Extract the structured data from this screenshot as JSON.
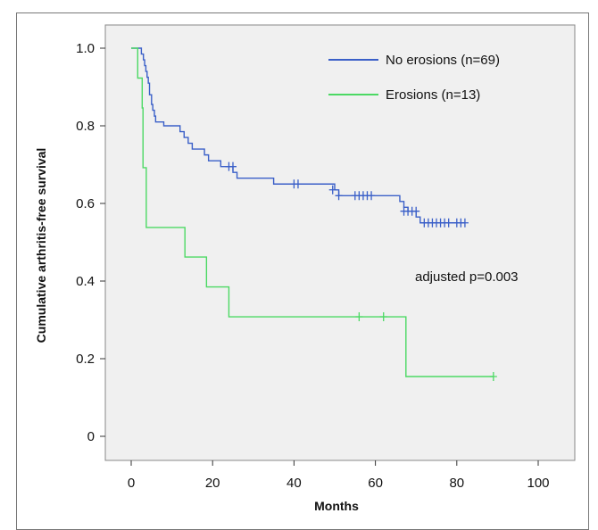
{
  "chart_data": {
    "type": "line",
    "xlabel": "Months",
    "ylabel": "Cumulative arthritis-free survival",
    "xlim": [
      0,
      100
    ],
    "ylim": [
      0,
      1.0
    ],
    "x_ticks": [
      "0",
      "20",
      "40",
      "60",
      "80",
      "100"
    ],
    "y_ticks": [
      "0",
      "0.2",
      "0.4",
      "0.6",
      "0.8",
      "1.0"
    ],
    "grid": false,
    "legend_position": "top-right",
    "annotation": "adjusted p=0.003",
    "colors": {
      "No erosions (n=69)": "#3a5fc8",
      "Erosions (n=13)": "#4cd964",
      "plot_bg": "#f0f0f0"
    },
    "series": [
      {
        "name": "No erosions (n=69)",
        "step": true,
        "points": [
          [
            0,
            1.0
          ],
          [
            2,
            1.0
          ],
          [
            2.5,
            0.985
          ],
          [
            3,
            0.97
          ],
          [
            3.3,
            0.955
          ],
          [
            3.6,
            0.94
          ],
          [
            3.9,
            0.925
          ],
          [
            4.2,
            0.91
          ],
          [
            4.5,
            0.88
          ],
          [
            5,
            0.855
          ],
          [
            5.3,
            0.84
          ],
          [
            5.7,
            0.825
          ],
          [
            6,
            0.81
          ],
          [
            8,
            0.8
          ],
          [
            12,
            0.785
          ],
          [
            13,
            0.77
          ],
          [
            14,
            0.755
          ],
          [
            15,
            0.74
          ],
          [
            18,
            0.725
          ],
          [
            19,
            0.71
          ],
          [
            22,
            0.695
          ],
          [
            25,
            0.68
          ],
          [
            26,
            0.665
          ],
          [
            35,
            0.65
          ],
          [
            41,
            0.65
          ],
          [
            50,
            0.635
          ],
          [
            51,
            0.62
          ],
          [
            56,
            0.62
          ],
          [
            62,
            0.62
          ],
          [
            66,
            0.605
          ],
          [
            67,
            0.59
          ],
          [
            68,
            0.58
          ],
          [
            70,
            0.565
          ],
          [
            71,
            0.55
          ],
          [
            82,
            0.55
          ]
        ],
        "censored": [
          [
            24,
            0.695
          ],
          [
            25,
            0.695
          ],
          [
            40,
            0.65
          ],
          [
            41,
            0.65
          ],
          [
            49.5,
            0.635
          ],
          [
            51,
            0.62
          ],
          [
            55,
            0.62
          ],
          [
            56,
            0.62
          ],
          [
            57,
            0.62
          ],
          [
            58,
            0.62
          ],
          [
            59,
            0.62
          ],
          [
            67,
            0.58
          ],
          [
            68,
            0.58
          ],
          [
            69,
            0.58
          ],
          [
            70,
            0.58
          ],
          [
            72,
            0.55
          ],
          [
            73,
            0.55
          ],
          [
            74,
            0.55
          ],
          [
            75,
            0.55
          ],
          [
            76,
            0.55
          ],
          [
            77,
            0.55
          ],
          [
            78,
            0.55
          ],
          [
            80,
            0.55
          ],
          [
            81,
            0.55
          ],
          [
            82,
            0.55
          ]
        ]
      },
      {
        "name": "Erosions (n=13)",
        "step": true,
        "points": [
          [
            0,
            1.0
          ],
          [
            1.5,
            1.0
          ],
          [
            1.6,
            0.923
          ],
          [
            2.7,
            0.846
          ],
          [
            2.9,
            0.692
          ],
          [
            3.7,
            0.538
          ],
          [
            13.2,
            0.462
          ],
          [
            18.5,
            0.385
          ],
          [
            24,
            0.308
          ],
          [
            67.5,
            0.154
          ],
          [
            89,
            0.154
          ]
        ],
        "censored": [
          [
            56,
            0.308
          ],
          [
            62,
            0.308
          ],
          [
            89,
            0.154
          ]
        ]
      }
    ]
  }
}
